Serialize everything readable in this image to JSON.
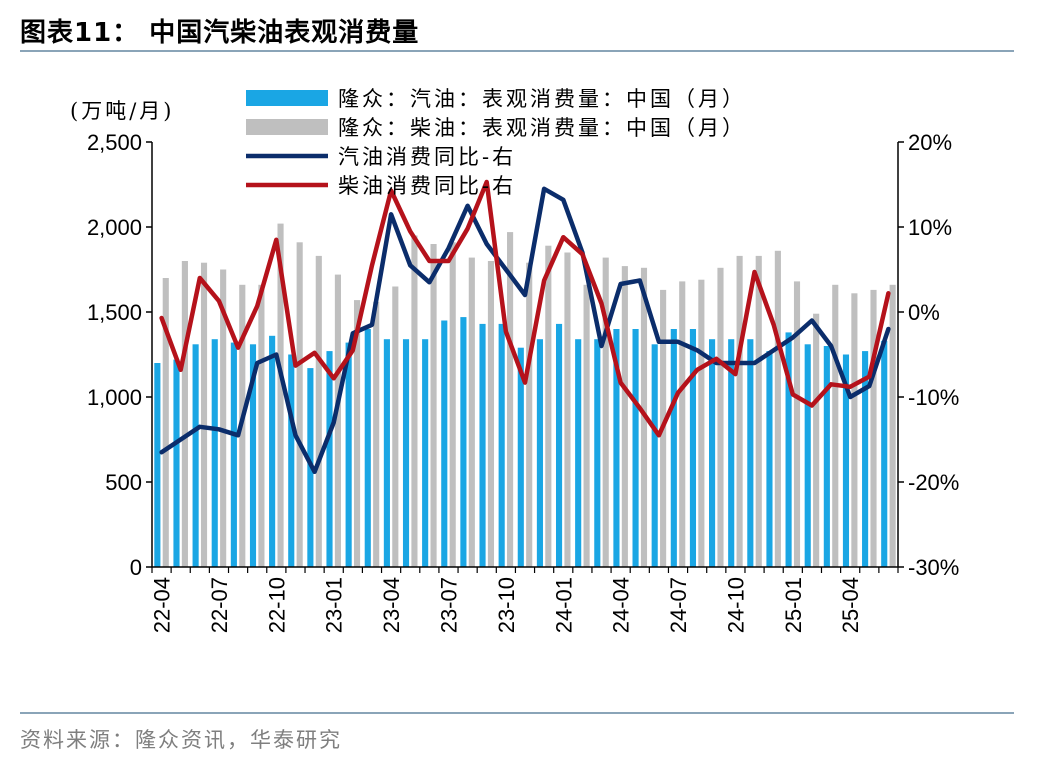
{
  "header": {
    "title": "图表11：  中国汽柴油表观消费量"
  },
  "footer": {
    "source": "资料来源：隆众资讯，华泰研究"
  },
  "colors": {
    "gasoline_bar": "#1aa6e4",
    "diesel_bar": "#bfbfbf",
    "gasoline_line": "#0b2d6b",
    "diesel_line": "#b5121b"
  },
  "chart_data": {
    "type": "bar",
    "y_left_unit": "(万吨/月)",
    "ylim_left": [
      0,
      2500
    ],
    "ylim_right": [
      -30,
      20
    ],
    "yticks_left": [
      "0",
      "500",
      "1,000",
      "1,500",
      "2,000",
      "2,500"
    ],
    "yticks_right": [
      "-30%",
      "-20%",
      "-10%",
      "0%",
      "10%",
      "20%"
    ],
    "x": [
      "22-04",
      "22-05",
      "22-06",
      "22-07",
      "22-08",
      "22-09",
      "22-10",
      "22-11",
      "22-12",
      "23-01",
      "23-02",
      "23-03",
      "23-04",
      "23-05",
      "23-06",
      "23-07",
      "23-08",
      "23-09",
      "23-10",
      "23-11",
      "23-12",
      "24-01",
      "24-02",
      "24-03",
      "24-04",
      "24-05",
      "24-06",
      "24-07",
      "24-08",
      "24-09",
      "24-10",
      "24-11",
      "24-12",
      "25-01",
      "25-02",
      "25-03",
      "25-04",
      "25-05",
      "25-06"
    ],
    "x_tick_labels": [
      "22-04",
      "22-07",
      "22-10",
      "23-01",
      "23-04",
      "23-07",
      "23-10",
      "24-01",
      "24-04",
      "24-07",
      "24-10",
      "25-01",
      "25-04"
    ],
    "series": [
      {
        "name": "隆众：汽油：表观消费量：中国（月）",
        "axis": "left",
        "kind": "bar",
        "values": [
          1200,
          1220,
          1310,
          1340,
          1320,
          1310,
          1360,
          1250,
          1170,
          1270,
          1320,
          1400,
          1340,
          1340,
          1340,
          1450,
          1470,
          1430,
          1430,
          1290,
          1340,
          1430,
          1340,
          1340,
          1400,
          1400,
          1310,
          1400,
          1400,
          1340,
          1340,
          1340,
          1270,
          1380,
          1310,
          1300,
          1250,
          1270,
          1330
        ]
      },
      {
        "name": "隆众：柴油：表观消费量：中国（月）",
        "axis": "left",
        "kind": "bar",
        "values": [
          1700,
          1800,
          1790,
          1750,
          1660,
          1660,
          2020,
          1910,
          1830,
          1720,
          1570,
          1560,
          1650,
          1950,
          1900,
          1910,
          1820,
          1800,
          1970,
          1790,
          1890,
          1850,
          1660,
          1820,
          1770,
          1760,
          1630,
          1680,
          1690,
          1760,
          1830,
          1830,
          1860,
          1680,
          1490,
          1660,
          1610,
          1630,
          1660
        ]
      },
      {
        "name": "汽油消费同比-右",
        "axis": "right",
        "kind": "line",
        "values": [
          -16.5,
          -15.0,
          -13.5,
          -13.8,
          -14.5,
          -6.0,
          -5.0,
          -14.5,
          -18.8,
          -13.0,
          -2.5,
          -1.5,
          11.5,
          5.5,
          3.5,
          7.5,
          12.5,
          8.0,
          5.0,
          2.0,
          14.5,
          13.2,
          7.0,
          -4.0,
          3.3,
          3.7,
          -3.5,
          -3.5,
          -4.5,
          -6.0,
          -6.0,
          -6.0,
          -4.5,
          -3.0,
          -1.0,
          -4.0,
          -10.0,
          -8.7,
          -2.0
        ]
      },
      {
        "name": "柴油消费同比-右",
        "axis": "right",
        "kind": "line",
        "values": [
          -0.7,
          -6.8,
          4.0,
          1.3,
          -4.2,
          0.7,
          8.5,
          -6.3,
          -4.8,
          -7.8,
          -4.5,
          5.5,
          14.3,
          9.5,
          6.0,
          6.0,
          9.8,
          15.3,
          -2.3,
          -8.3,
          3.7,
          8.8,
          6.8,
          1.0,
          -8.3,
          -11.3,
          -14.5,
          -9.5,
          -6.8,
          -5.5,
          -7.3,
          4.7,
          -1.5,
          -9.7,
          -11.0,
          -8.5,
          -8.8,
          -7.6,
          2.2
        ]
      }
    ]
  }
}
